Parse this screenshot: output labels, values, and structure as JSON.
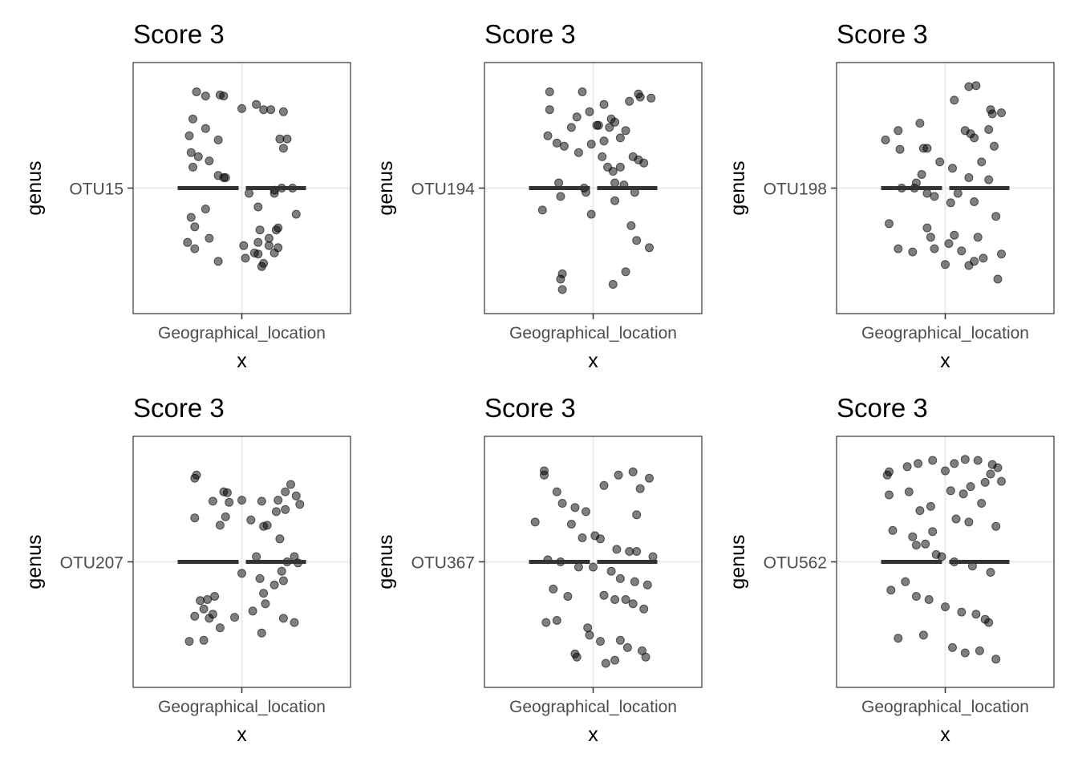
{
  "chart_data": [
    {
      "type": "scatter",
      "title": "Score 3",
      "xlabel": "x",
      "ylabel": "genus",
      "x_tick": "Geographical_location",
      "y_tick": "OTU15",
      "grid": true,
      "x": [
        -0.25,
        -0.2,
        -0.12,
        -0.1,
        -0.27,
        -0.2,
        -0.13,
        -0.24,
        0.0,
        0.08,
        0.12,
        0.23,
        0.16,
        0.25,
        0.21,
        0.23,
        -0.28,
        -0.18,
        -0.27,
        -0.1,
        -0.13,
        0.22,
        0.18,
        0.28,
        0.09,
        0.3,
        -0.28,
        -0.26,
        0.1,
        0.15,
        -0.18,
        -0.26,
        0.01,
        0.09,
        0.2,
        -0.2,
        0.2,
        0.19,
        0.15,
        0.07,
        -0.29,
        -0.13,
        0.02,
        0.12,
        -0.3,
        -0.09,
        0.04,
        0.18,
        0.09,
        0.11,
        0.18
      ],
      "y": [
        0.92,
        0.88,
        0.89,
        0.88,
        0.66,
        0.57,
        0.46,
        0.3,
        0.76,
        0.8,
        0.75,
        0.73,
        0.75,
        0.47,
        0.47,
        0.38,
        0.34,
        0.26,
        0.2,
        0.1,
        0.12,
        0.0,
        -0.02,
        0.0,
        -0.18,
        -0.25,
        -0.28,
        -0.37,
        -0.4,
        -0.48,
        -0.48,
        -0.58,
        -0.55,
        -0.63,
        -0.57,
        -0.2,
        -0.38,
        -0.4,
        -0.55,
        -0.62,
        0.5,
        -0.7,
        -0.67,
        -0.72,
        -0.52,
        0.1,
        -0.05,
        -0.05,
        -0.52,
        -0.75,
        -0.62
      ]
    },
    {
      "type": "scatter",
      "title": "Score 3",
      "xlabel": "x",
      "ylabel": "genus",
      "x_tick": "Geographical_location",
      "y_tick": "OTU194",
      "grid": true,
      "x": [
        -0.24,
        -0.24,
        -0.12,
        -0.25,
        -0.2,
        -0.09,
        -0.02,
        0.02,
        0.06,
        -0.01,
        0.06,
        -0.06,
        0.12,
        0.09,
        0.03,
        0.1,
        0.15,
        0.18,
        0.2,
        0.26,
        0.25,
        0.32,
        -0.16,
        -0.08,
        0.05,
        0.11,
        0.12,
        -0.19,
        0.15,
        0.08,
        0.28,
        0.25,
        0.22,
        -0.04,
        -0.01,
        0.24,
        0.21,
        0.31,
        -0.28,
        -0.18,
        -0.05,
        0.17,
        0.12,
        0.23,
        -0.17,
        -0.17,
        -0.18,
        0.11,
        0.18
      ],
      "y": [
        0.92,
        0.75,
        0.58,
        0.5,
        0.43,
        0.68,
        0.73,
        0.6,
        0.8,
        0.42,
        0.45,
        0.92,
        0.63,
        0.58,
        0.6,
        0.66,
        0.48,
        0.55,
        0.83,
        0.87,
        0.9,
        0.86,
        0.4,
        0.34,
        0.3,
        0.16,
        0.05,
        0.05,
        0.2,
        0.2,
        0.24,
        0.27,
        0.3,
        -0.04,
        -0.25,
        -0.5,
        -0.36,
        -0.57,
        -0.21,
        -0.08,
        0.0,
        0.03,
        -0.12,
        -0.04,
        -0.82,
        -0.97,
        -0.87,
        -0.92,
        -0.8
      ]
    },
    {
      "type": "scatter",
      "title": "Score 3",
      "xlabel": "x",
      "ylabel": "genus",
      "x_tick": "Geographical_location",
      "y_tick": "OTU198",
      "grid": true,
      "x": [
        0.13,
        0.17,
        0.26,
        0.31,
        0.25,
        -0.33,
        -0.14,
        0.05,
        0.16,
        0.14,
        -0.26,
        -0.12,
        -0.25,
        -0.13,
        -0.16,
        0.11,
        0.24,
        -0.1,
        -0.03,
        0.04,
        0.13,
        0.2,
        0.27,
        0.24,
        -0.24,
        -0.17,
        -0.1,
        -0.06,
        0.03,
        0.07,
        0.16,
        0.28,
        -0.1,
        0.05,
        0.18,
        -0.31,
        -0.26,
        -0.18,
        -0.06,
        0.16,
        0.21,
        0.31,
        0.0,
        0.09,
        -0.08,
        0.02,
        0.13,
        0.29
      ],
      "y": [
        0.97,
        0.98,
        0.71,
        0.72,
        0.75,
        0.46,
        0.62,
        0.84,
        0.48,
        0.52,
        0.55,
        0.38,
        0.37,
        0.13,
        0.05,
        0.55,
        0.56,
        0.38,
        0.25,
        0.19,
        0.1,
        0.25,
        0.4,
        0.08,
        0.0,
        0.0,
        -0.05,
        -0.08,
        -0.14,
        -0.05,
        -0.13,
        -0.27,
        -0.38,
        -0.45,
        -0.47,
        -0.34,
        -0.58,
        -0.61,
        -0.58,
        -0.7,
        -0.67,
        -0.63,
        -0.73,
        -0.6,
        -0.47,
        -0.53,
        -0.74,
        -0.87
      ]
    },
    {
      "type": "scatter",
      "title": "Score 3",
      "xlabel": "x",
      "ylabel": "genus",
      "x_tick": "Geographical_location",
      "y_tick": "OTU207",
      "grid": true,
      "x": [
        -0.26,
        -0.25,
        -0.1,
        -0.16,
        -0.08,
        0.0,
        0.11,
        0.2,
        0.24,
        0.3,
        0.27,
        -0.26,
        -0.07,
        -0.09,
        0.05,
        0.19,
        0.24,
        0.32,
        0.14,
        0.21,
        -0.12,
        0.12,
        0.08,
        0.25,
        0.29,
        0.22,
        0.31,
        0.0,
        0.1,
        0.23,
        -0.19,
        -0.15,
        -0.23,
        -0.16,
        -0.26,
        -0.21,
        0.06,
        0.12,
        0.18,
        0.13,
        -0.12,
        -0.04,
        0.23,
        0.29,
        0.11,
        -0.18,
        -0.29,
        -0.21
      ],
      "y": [
        0.8,
        0.83,
        0.67,
        0.58,
        0.66,
        0.59,
        0.58,
        0.59,
        0.67,
        0.63,
        0.74,
        0.42,
        0.57,
        0.43,
        0.4,
        0.48,
        0.5,
        0.55,
        0.35,
        0.22,
        0.35,
        0.34,
        0.05,
        0.0,
        0.05,
        -0.09,
        -0.01,
        -0.11,
        -0.16,
        -0.18,
        -0.36,
        -0.33,
        -0.37,
        -0.5,
        -0.52,
        -0.45,
        -0.47,
        -0.3,
        -0.22,
        -0.4,
        -0.63,
        -0.53,
        -0.54,
        -0.58,
        -0.68,
        -0.54,
        -0.76,
        -0.75
      ]
    },
    {
      "type": "scatter",
      "title": "Score 3",
      "xlabel": "x",
      "ylabel": "genus",
      "x_tick": "Geographical_location",
      "y_tick": "OTU367",
      "grid": true,
      "x": [
        -0.27,
        -0.27,
        -0.2,
        -0.17,
        -0.1,
        -0.04,
        0.06,
        0.14,
        0.22,
        0.26,
        0.31,
        0.24,
        -0.32,
        -0.12,
        -0.06,
        0.01,
        0.04,
        0.13,
        0.2,
        0.24,
        0.33,
        -0.25,
        -0.18,
        -0.08,
        0.0,
        0.1,
        0.15,
        0.23,
        0.3,
        -0.22,
        -0.14,
        0.06,
        0.12,
        0.18,
        0.22,
        0.28,
        -0.26,
        -0.2,
        -0.03,
        -0.02,
        0.04,
        0.15,
        0.19,
        0.27,
        -0.1,
        -0.09,
        0.07,
        0.12,
        0.29
      ],
      "y": [
        0.83,
        0.87,
        0.67,
        0.56,
        0.52,
        0.48,
        0.73,
        0.83,
        0.86,
        0.7,
        0.8,
        0.45,
        0.38,
        0.36,
        0.23,
        0.25,
        0.22,
        0.12,
        0.1,
        0.1,
        0.05,
        0.02,
        0.0,
        -0.05,
        -0.05,
        -0.09,
        -0.16,
        -0.19,
        -0.22,
        -0.26,
        -0.33,
        -0.32,
        -0.36,
        -0.36,
        -0.4,
        -0.45,
        -0.58,
        -0.56,
        -0.63,
        -0.7,
        -0.76,
        -0.75,
        -0.82,
        -0.85,
        -0.88,
        -0.91,
        -0.97,
        -0.94,
        -0.91
      ]
    },
    {
      "type": "scatter",
      "title": "Score 3",
      "xlabel": "x",
      "ylabel": "genus",
      "x_tick": "Geographical_location",
      "y_tick": "OTU562",
      "grid": true,
      "x": [
        -0.32,
        -0.31,
        -0.21,
        -0.15,
        -0.07,
        0.0,
        0.05,
        0.11,
        0.18,
        0.26,
        0.29,
        0.31,
        -0.31,
        -0.2,
        -0.08,
        0.03,
        0.1,
        0.14,
        0.22,
        0.25,
        -0.14,
        -0.07,
        -0.02,
        0.06,
        0.13,
        0.2,
        0.28,
        -0.29,
        -0.18,
        -0.16,
        -0.11,
        -0.05,
        0.05,
        0.15,
        0.25,
        -0.3,
        -0.22,
        -0.16,
        -0.09,
        0.0,
        0.09,
        0.17,
        0.22,
        0.24,
        -0.26,
        -0.12,
        0.04,
        0.11,
        0.19,
        0.28
      ],
      "y": [
        0.83,
        0.86,
        0.91,
        0.94,
        0.97,
        0.87,
        0.94,
        0.98,
        0.97,
        0.93,
        0.9,
        0.77,
        0.64,
        0.67,
        0.53,
        0.68,
        0.65,
        0.72,
        0.76,
        0.84,
        0.49,
        0.29,
        0.05,
        0.41,
        0.38,
        0.56,
        0.34,
        0.3,
        0.24,
        0.16,
        0.17,
        0.07,
        0.0,
        -0.04,
        -0.1,
        -0.27,
        -0.19,
        -0.33,
        -0.36,
        -0.43,
        -0.48,
        -0.5,
        -0.55,
        -0.58,
        -0.73,
        -0.7,
        -0.82,
        -0.87,
        -0.85,
        -0.93
      ]
    }
  ],
  "style": {
    "point_color": "#000000",
    "point_opacity": 0.5,
    "median_bar_color": "#333333",
    "grid_color": "#ebebeb",
    "panel_border": "#333333",
    "tick_label_color": "#4d4d4d"
  }
}
